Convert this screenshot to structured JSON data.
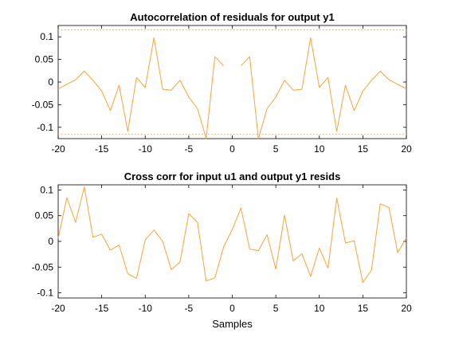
{
  "colors": {
    "line": "#f7a33a",
    "axis": "#000000",
    "background": "#ffffff"
  },
  "chart_data": [
    {
      "type": "line",
      "title": "Autocorrelation of residuals for output y1",
      "xlabel": "",
      "ylabel": "",
      "xlim": [
        -20,
        20
      ],
      "ylim": [
        -0.125,
        0.125
      ],
      "xticks": [
        -20,
        -15,
        -10,
        -5,
        0,
        5,
        10,
        15,
        20
      ],
      "yticks": [
        0.1,
        0.05,
        0,
        -0.05,
        -0.1
      ],
      "ytick_labels": [
        "0.1",
        "0.05",
        "0",
        "-0.05",
        "-0.1"
      ],
      "confidence_bounds": [
        0.115,
        -0.115
      ],
      "series": [
        {
          "x": [
            -20,
            -19,
            -18,
            -17,
            -16,
            -15,
            -14,
            -13,
            -12,
            -11,
            -10,
            -9,
            -8,
            -7,
            -6,
            -5,
            -4,
            -3,
            -2,
            -1,
            0,
            1,
            2,
            3,
            4,
            5,
            6,
            7,
            8,
            9,
            10,
            11,
            12,
            13,
            14,
            15,
            16,
            17,
            18,
            19,
            20
          ],
          "values": [
            -0.015,
            -0.005,
            0.005,
            0.024,
            0.004,
            -0.02,
            -0.063,
            -0.007,
            -0.109,
            0.01,
            -0.012,
            0.098,
            -0.016,
            -0.018,
            0.004,
            -0.033,
            -0.059,
            -0.125,
            0.056,
            0.036,
            null,
            0.036,
            0.056,
            -0.125,
            -0.059,
            -0.033,
            0.004,
            -0.018,
            -0.016,
            0.098,
            -0.012,
            0.01,
            -0.109,
            -0.007,
            -0.063,
            -0.02,
            0.004,
            0.024,
            0.005,
            -0.005,
            -0.015
          ]
        }
      ]
    },
    {
      "type": "line",
      "title": "Cross corr for input u1 and output y1 resids",
      "xlabel": "Samples",
      "ylabel": "",
      "xlim": [
        -20,
        20
      ],
      "ylim": [
        -0.11,
        0.11
      ],
      "xticks": [
        -20,
        -15,
        -10,
        -5,
        0,
        5,
        10,
        15,
        20
      ],
      "yticks": [
        0.1,
        0.05,
        0,
        -0.05,
        -0.1
      ],
      "ytick_labels": [
        "0.1",
        "0.05",
        "0",
        "-0.05",
        "-0.1"
      ],
      "series": [
        {
          "x": [
            -20,
            -19,
            -18,
            -17,
            -16,
            -15,
            -14,
            -13,
            -12,
            -11,
            -10,
            -9,
            -8,
            -7,
            -6,
            -5,
            -4,
            -3,
            -2,
            -1,
            0,
            1,
            2,
            3,
            4,
            5,
            6,
            7,
            8,
            9,
            10,
            11,
            12,
            13,
            14,
            15,
            16,
            17,
            18,
            19,
            20
          ],
          "values": [
            0.006,
            0.085,
            0.037,
            0.106,
            0.008,
            0.014,
            -0.017,
            -0.007,
            -0.063,
            -0.072,
            0.003,
            0.022,
            0.0,
            -0.055,
            -0.04,
            0.054,
            0.037,
            -0.077,
            -0.071,
            -0.011,
            0.023,
            0.065,
            -0.015,
            -0.018,
            0.013,
            -0.054,
            0.051,
            -0.038,
            -0.024,
            -0.068,
            -0.013,
            -0.052,
            0.084,
            -0.003,
            0.001,
            -0.08,
            -0.055,
            0.073,
            0.066,
            -0.022,
            0.007
          ]
        }
      ]
    }
  ]
}
